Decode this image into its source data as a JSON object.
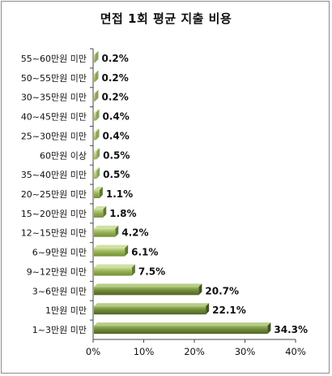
{
  "chart_data": {
    "type": "bar",
    "orientation": "horizontal",
    "title": "면접 1회 평균 지출 비용",
    "categories": [
      "55~60만원 미만",
      "50~55만원 미만",
      "30~35만원 미만",
      "40~45만원 미만",
      "25~30만원 미만",
      "60만원 이상",
      "35~40만원 미만",
      "20~25만원 미만",
      "15~20만원 미만",
      "12~15만원 미만",
      "6~9만원 미만",
      "9~12만원 미만",
      "3~6만원 미만",
      "1만원 미만",
      "1~3만원 미만"
    ],
    "values": [
      0.2,
      0.2,
      0.2,
      0.4,
      0.4,
      0.5,
      0.5,
      1.1,
      1.8,
      4.2,
      6.1,
      7.5,
      20.7,
      22.1,
      34.3
    ],
    "value_labels": [
      "0.2%",
      "0.2%",
      "0.2%",
      "0.4%",
      "0.4%",
      "0.5%",
      "0.5%",
      "1.1%",
      "1.8%",
      "4.2%",
      "6.1%",
      "7.5%",
      "20.7%",
      "22.1%",
      "34.3%"
    ],
    "xlim": [
      0,
      40
    ],
    "x_ticks": [
      "0%",
      "10%",
      "20%",
      "30%",
      "40%"
    ],
    "xlabel": "",
    "ylabel": "",
    "grid": false,
    "legend": "none",
    "colors": {
      "light": "#b4cc78",
      "mid": "#8ea84c",
      "dark": "#5f7a2e",
      "highlight": "#d2e3a2"
    }
  }
}
